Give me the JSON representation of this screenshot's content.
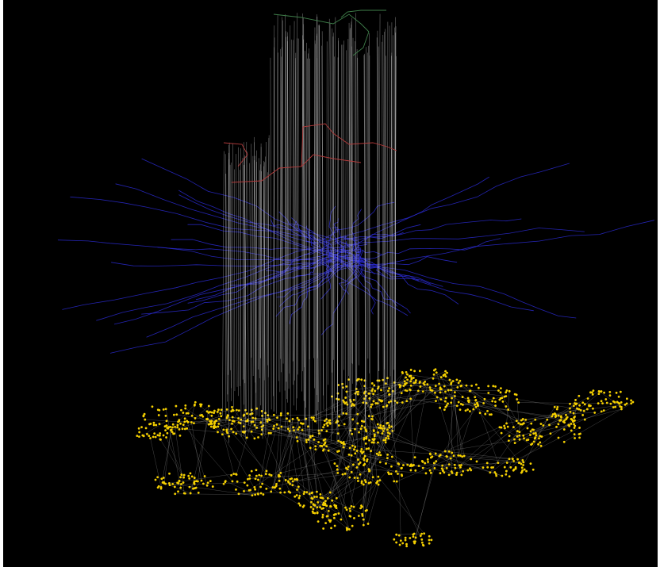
{
  "figure": {
    "kind": "multilayer-network-3d",
    "background_color": "#000000",
    "frame_color": "#ffffff",
    "layers": [
      {
        "id": "top",
        "color": "#3f7f4a"
      },
      {
        "id": "upper-middle",
        "color": "#b23a3a"
      },
      {
        "id": "middle",
        "color": "#2a2ad0"
      },
      {
        "id": "base",
        "color": "#f5d000"
      }
    ],
    "interlayer_link_color": "#d9d9d9",
    "base_edge_color": "#a0a0a0"
  }
}
